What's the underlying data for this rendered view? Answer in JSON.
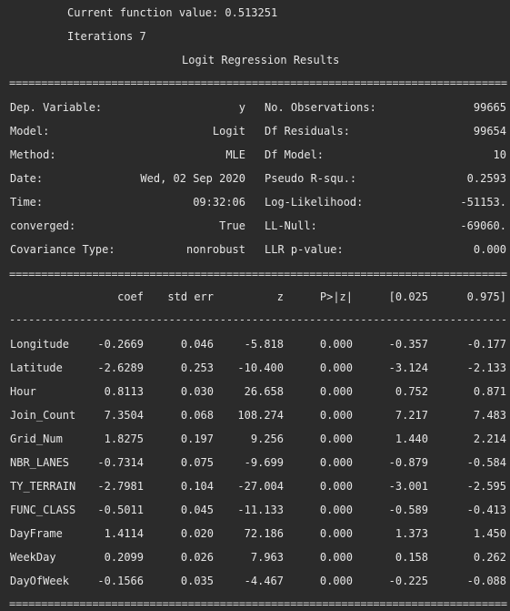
{
  "header": {
    "line1": "Current function value: 0.513251",
    "line2": "Iterations 7",
    "title": "Logit Regression Results"
  },
  "rules": {
    "double": "==============================================================================",
    "single": "------------------------------------------------------------------------------"
  },
  "summary": [
    {
      "k1": "Dep. Variable:",
      "v1": "y",
      "k2": "No. Observations:",
      "v2": "99665"
    },
    {
      "k1": "Model:",
      "v1": "Logit",
      "k2": "Df Residuals:",
      "v2": "99654"
    },
    {
      "k1": "Method:",
      "v1": "MLE",
      "k2": "Df Model:",
      "v2": "10"
    },
    {
      "k1": "Date:",
      "v1": "Wed, 02 Sep 2020",
      "k2": "Pseudo R-squ.:",
      "v2": "0.2593"
    },
    {
      "k1": "Time:",
      "v1": "09:32:06",
      "k2": "Log-Likelihood:",
      "v2": "-51153."
    },
    {
      "k1": "converged:",
      "v1": "True",
      "k2": "LL-Null:",
      "v2": "-69060."
    },
    {
      "k1": "Covariance Type:",
      "v1": "nonrobust",
      "k2": "LLR p-value:",
      "v2": "0.000"
    }
  ],
  "coef_header": [
    "coef",
    "std err",
    "z",
    "P>|z|",
    "[0.025",
    "0.975]"
  ],
  "coef_rows": [
    {
      "name": "Longitude",
      "vals": [
        "-0.2669",
        "0.046",
        "-5.818",
        "0.000",
        "-0.357",
        "-0.177"
      ]
    },
    {
      "name": "Latitude",
      "vals": [
        "-2.6289",
        "0.253",
        "-10.400",
        "0.000",
        "-3.124",
        "-2.133"
      ]
    },
    {
      "name": "Hour",
      "vals": [
        "0.8113",
        "0.030",
        "26.658",
        "0.000",
        "0.752",
        "0.871"
      ]
    },
    {
      "name": "Join_Count",
      "vals": [
        "7.3504",
        "0.068",
        "108.274",
        "0.000",
        "7.217",
        "7.483"
      ]
    },
    {
      "name": "Grid_Num",
      "vals": [
        "1.8275",
        "0.197",
        "9.256",
        "0.000",
        "1.440",
        "2.214"
      ]
    },
    {
      "name": "NBR_LANES",
      "vals": [
        "-0.7314",
        "0.075",
        "-9.699",
        "0.000",
        "-0.879",
        "-0.584"
      ]
    },
    {
      "name": "TY_TERRAIN",
      "vals": [
        "-2.7981",
        "0.104",
        "-27.004",
        "0.000",
        "-3.001",
        "-2.595"
      ]
    },
    {
      "name": "FUNC_CLASS",
      "vals": [
        "-0.5011",
        "0.045",
        "-11.133",
        "0.000",
        "-0.589",
        "-0.413"
      ]
    },
    {
      "name": "DayFrame",
      "vals": [
        "1.4114",
        "0.020",
        "72.186",
        "0.000",
        "1.373",
        "1.450"
      ]
    },
    {
      "name": "WeekDay",
      "vals": [
        "0.2099",
        "0.026",
        "7.963",
        "0.000",
        "0.158",
        "0.262"
      ]
    },
    {
      "name": "DayOfWeek",
      "vals": [
        "-0.1566",
        "0.035",
        "-4.467",
        "0.000",
        "-0.225",
        "-0.088"
      ]
    }
  ]
}
